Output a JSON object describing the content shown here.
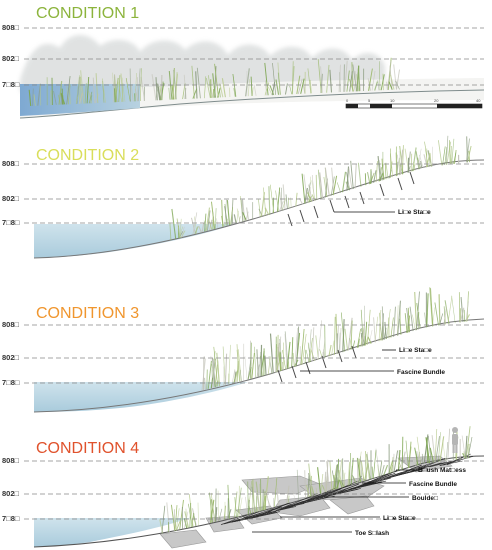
{
  "panels": [
    {
      "title": "CONDITION  1",
      "title_color": "#8cb43c",
      "elevations": [
        "808□",
        "802□",
        "7□8□"
      ],
      "callouts": []
    },
    {
      "title": "CONDITION  2",
      "title_color": "#d9de5a",
      "elevations": [
        "808□",
        "802□",
        "7□8□"
      ],
      "callouts": [
        "Li□e Sta□e"
      ]
    },
    {
      "title": "CONDITION  3",
      "title_color": "#f0962e",
      "elevations": [
        "808□",
        "802□",
        "7□8□"
      ],
      "callouts": [
        "Li□e Sta□e",
        "Fascine Bundle"
      ]
    },
    {
      "title": "CONDITION  4",
      "title_color": "#e0522c",
      "elevations": [
        "808□",
        "802□",
        "7□8□"
      ],
      "callouts": [
        "B□ush Mat□ess",
        "Fascine Bundle",
        "Boulde□",
        "Li□e Sta□e",
        "Toe S□lash"
      ]
    }
  ],
  "scale_bar": {
    "ticks": [
      "0",
      "5",
      "10",
      "20",
      "40"
    ]
  },
  "colors": {
    "water": "#b9d6e3",
    "water_dark": "#8fb6d6",
    "guide_line": "#888888",
    "ground_line": "#777777",
    "boulder": "#c6c6c6",
    "vegetation": "#a9c47a"
  }
}
